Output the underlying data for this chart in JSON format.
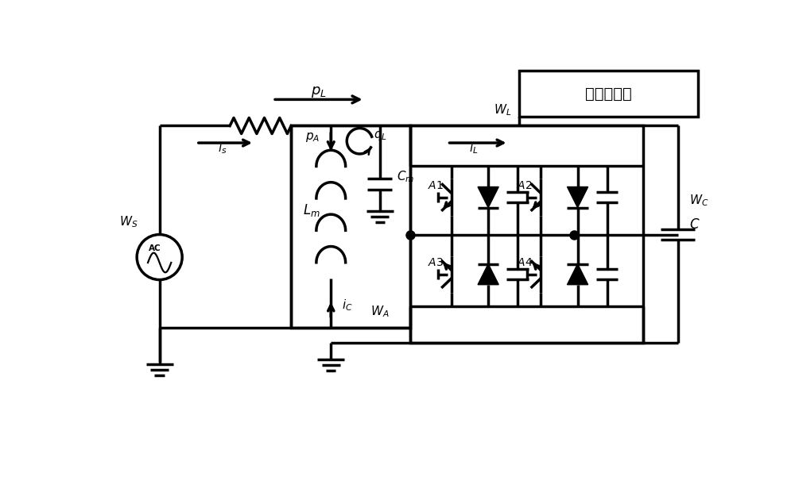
{
  "bg_color": "#ffffff",
  "line_color": "#000000",
  "line_width": 2.5,
  "fig_width": 10.0,
  "fig_height": 6.15,
  "labels": {
    "pL": "$p_L$",
    "pA": "$p_A$",
    "qL": "$q_L$",
    "iL": "$i_L$",
    "is": "$i_s$",
    "iC": "$i_C$",
    "Lm": "$L_m$",
    "Cm": "$C_m$",
    "WS": "$W_S$",
    "WL": "$W_L$",
    "WA": "$W_A$",
    "WC": "$W_C$",
    "AC": "AC",
    "nonlinear": "非线性负载",
    "A1": "$A1$",
    "A2": "$A2$",
    "A3": "$A3$",
    "A4": "$A4$",
    "C": "$C$"
  }
}
